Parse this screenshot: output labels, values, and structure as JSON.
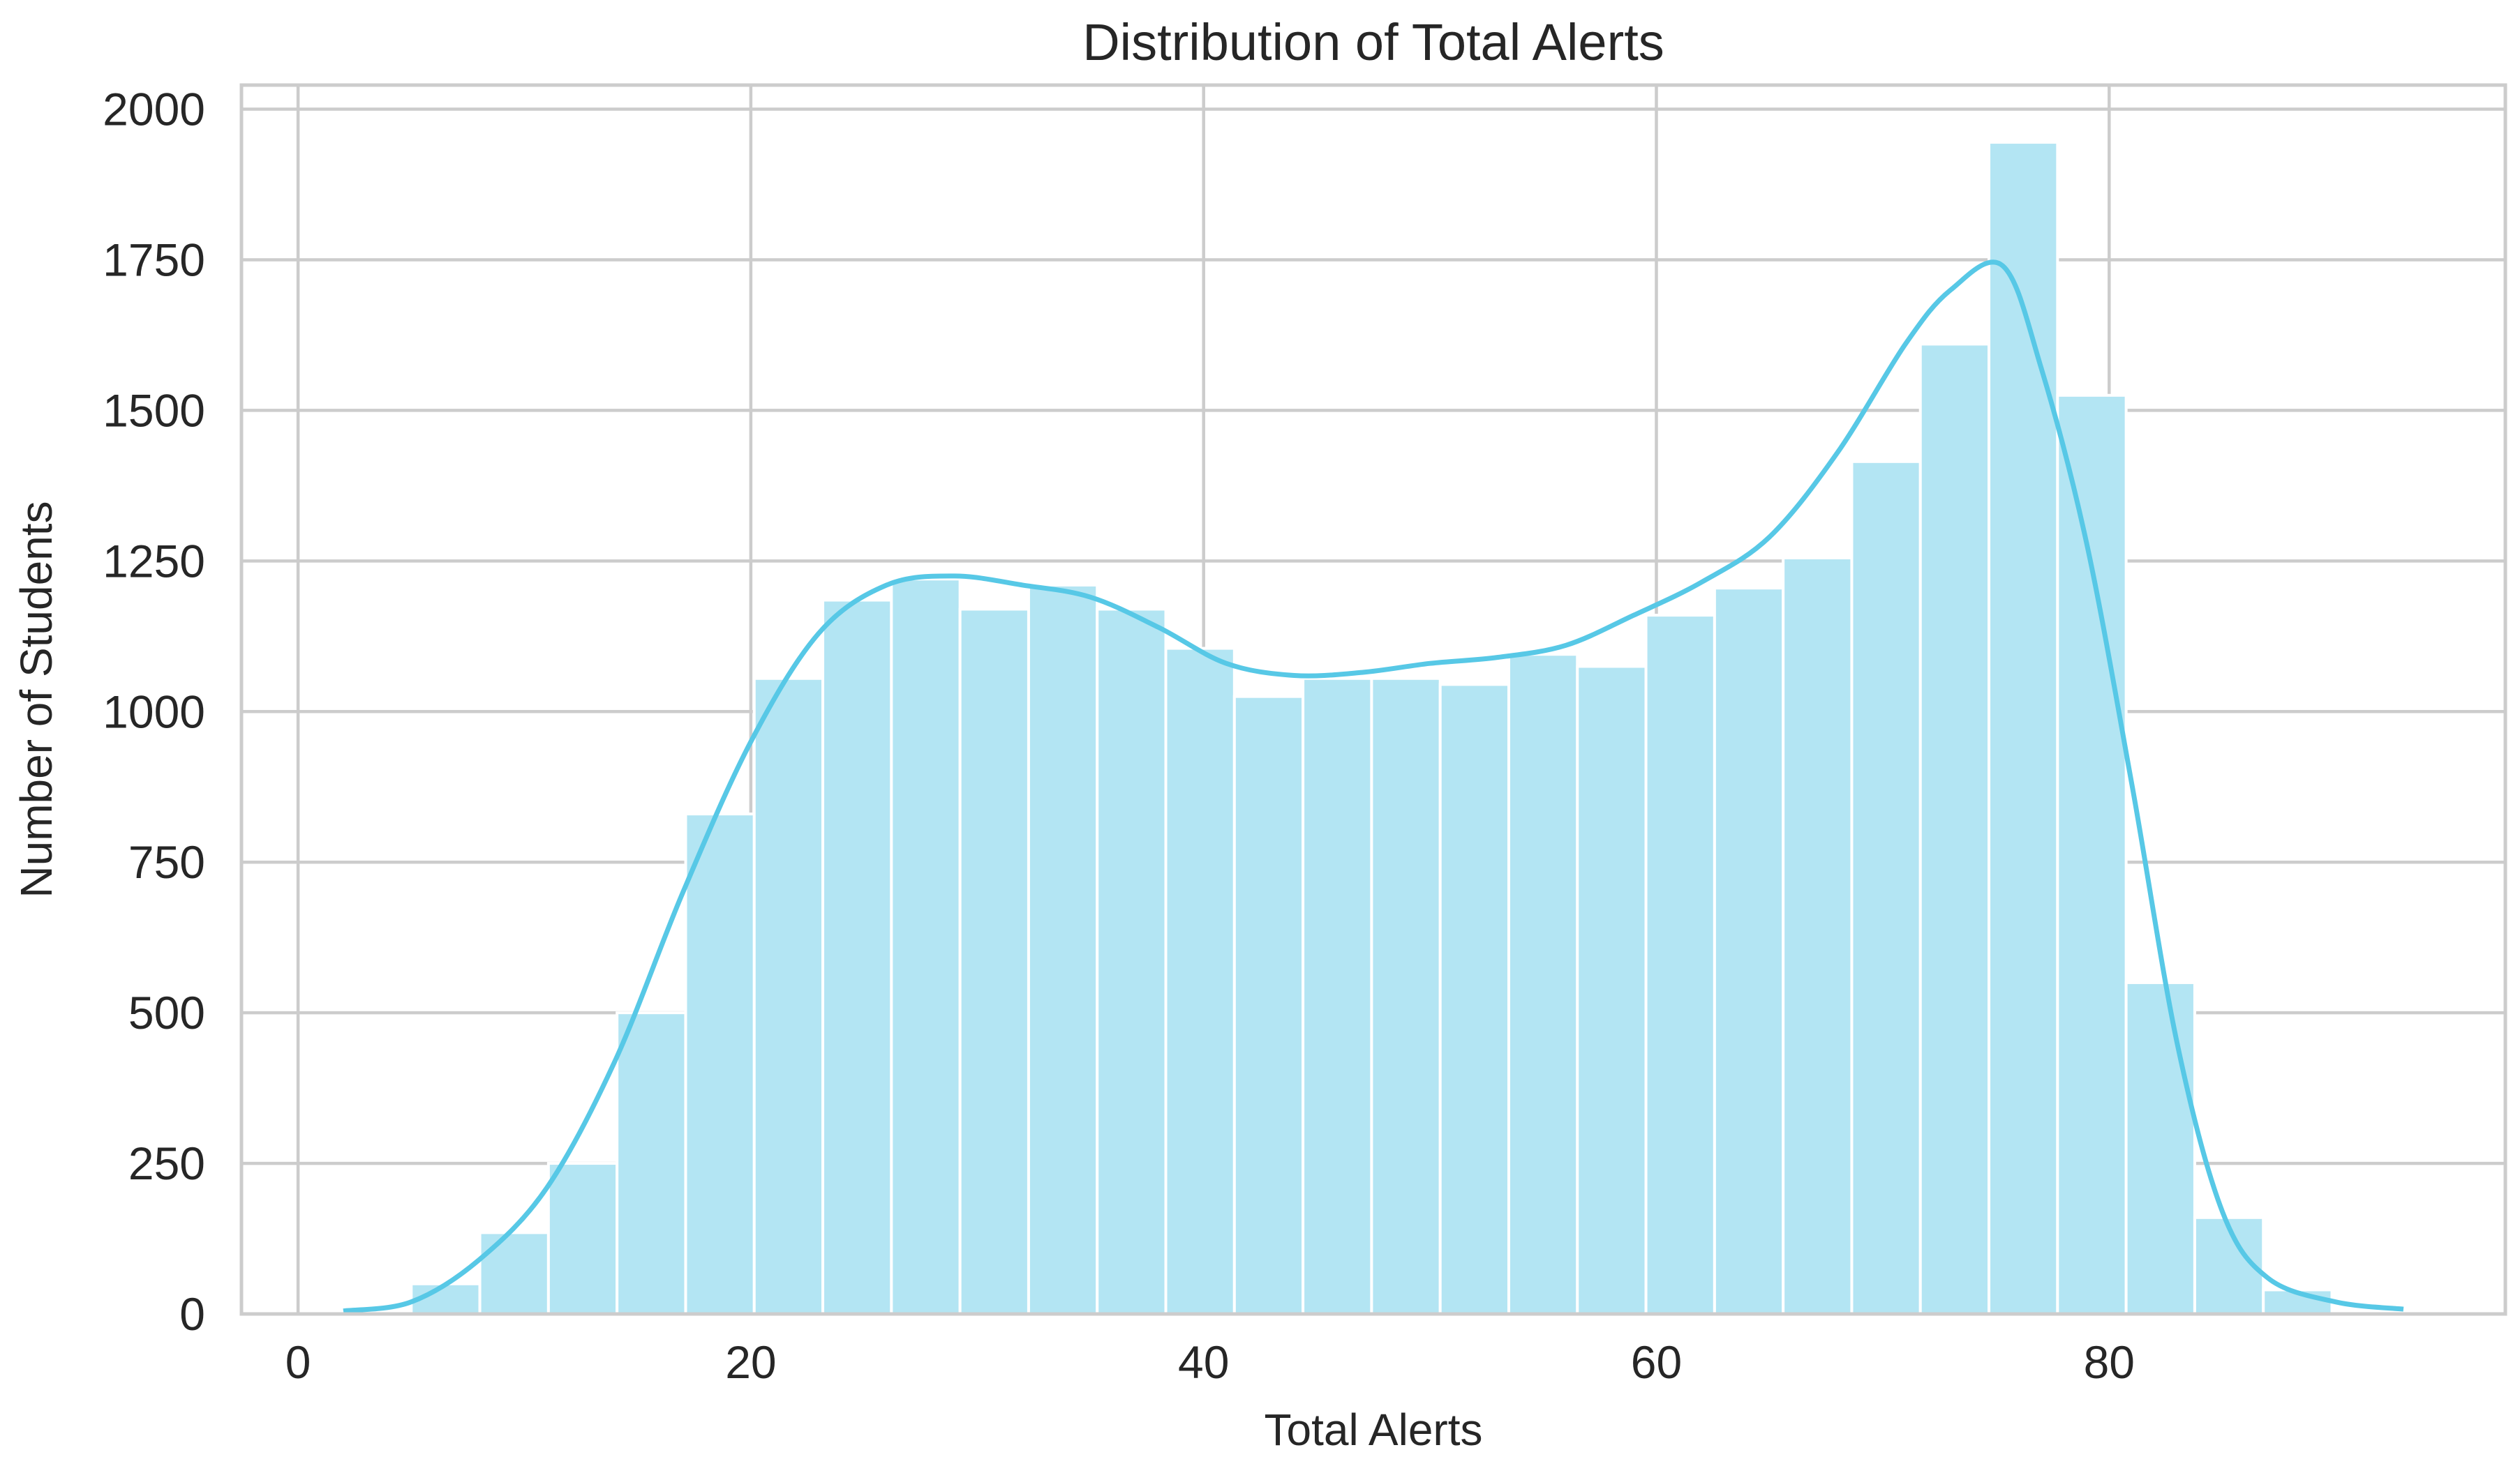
{
  "chart_data": {
    "type": "bar",
    "title": "Distribution of Total Alerts",
    "xlabel": "Total Alerts",
    "ylabel": "Number of Students",
    "xlim": [
      -2.5,
      97.5
    ],
    "ylim": [
      0,
      2040
    ],
    "xticks": [
      0,
      20,
      40,
      60,
      80
    ],
    "yticks": [
      0,
      250,
      500,
      750,
      1000,
      1250,
      1500,
      1750,
      2000
    ],
    "grid": true,
    "bin_width": 3.03,
    "bins": [
      {
        "start": 5.0,
        "count": 50
      },
      {
        "start": 8.03,
        "count": 135
      },
      {
        "start": 11.06,
        "count": 250
      },
      {
        "start": 14.09,
        "count": 500
      },
      {
        "start": 17.12,
        "count": 830
      },
      {
        "start": 20.15,
        "count": 1055
      },
      {
        "start": 23.18,
        "count": 1185
      },
      {
        "start": 26.21,
        "count": 1220
      },
      {
        "start": 29.24,
        "count": 1170
      },
      {
        "start": 32.27,
        "count": 1210
      },
      {
        "start": 35.3,
        "count": 1170
      },
      {
        "start": 38.33,
        "count": 1105
      },
      {
        "start": 41.36,
        "count": 1025
      },
      {
        "start": 44.39,
        "count": 1055
      },
      {
        "start": 47.42,
        "count": 1055
      },
      {
        "start": 50.45,
        "count": 1045
      },
      {
        "start": 53.48,
        "count": 1095
      },
      {
        "start": 56.51,
        "count": 1075
      },
      {
        "start": 59.54,
        "count": 1160
      },
      {
        "start": 62.57,
        "count": 1205
      },
      {
        "start": 65.6,
        "count": 1255
      },
      {
        "start": 68.63,
        "count": 1415
      },
      {
        "start": 71.66,
        "count": 1610
      },
      {
        "start": 74.69,
        "count": 1945
      },
      {
        "start": 77.72,
        "count": 1525
      },
      {
        "start": 80.75,
        "count": 550
      },
      {
        "start": 83.78,
        "count": 160
      },
      {
        "start": 86.81,
        "count": 40
      }
    ],
    "kde": {
      "x": [
        2,
        5,
        8,
        11,
        14,
        17,
        20,
        23,
        26,
        29,
        32,
        35,
        38,
        41,
        44,
        47,
        50,
        53,
        56,
        59,
        62,
        65,
        68,
        71,
        73,
        75.3,
        77,
        79,
        81,
        83,
        85,
        87,
        90,
        93
      ],
      "y": [
        5,
        20,
        90,
        210,
        420,
        700,
        950,
        1130,
        1210,
        1225,
        1210,
        1190,
        1140,
        1080,
        1060,
        1065,
        1080,
        1090,
        1110,
        1160,
        1215,
        1290,
        1430,
        1610,
        1700,
        1740,
        1570,
        1280,
        880,
        450,
        170,
        60,
        20,
        8
      ]
    },
    "colors": {
      "bar_fill": "#b3e5f3",
      "bar_edge": "#ffffff",
      "kde_line": "#57c8e6",
      "grid": "#cccccc",
      "frame": "#cccccc"
    }
  }
}
